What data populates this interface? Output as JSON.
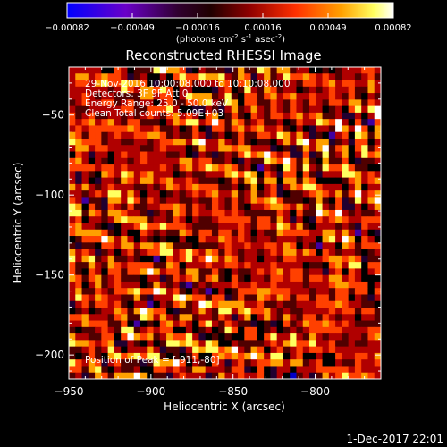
{
  "chart_data": {
    "type": "heatmap",
    "title": "Reconstructed RHESSI Image",
    "xlabel": "Heliocentric X (arcsec)",
    "ylabel": "Heliocentric Y (arcsec)",
    "xlim": [
      -950,
      -760
    ],
    "ylim": [
      -215,
      -20
    ],
    "x_ticks": [
      -950,
      -900,
      -850,
      -800
    ],
    "y_ticks": [
      -50,
      -100,
      -150,
      -200
    ],
    "grid": false,
    "colorbar": {
      "ticks": [
        "-0.00082",
        "-0.00049",
        "-0.00016",
        "0.00016",
        "0.00049",
        "0.00082"
      ],
      "range": [
        -0.00082,
        0.00082
      ],
      "units_main": "(photons cm",
      "units_exp1": "-2",
      "units_mid": " s",
      "units_exp2": "-1",
      "units_end": " asec",
      "units_exp3": "-2",
      "units_close": ")"
    },
    "annotations": [
      "29-Nov-2016 10:00:08.000 to 10:10:08.000",
      "Detectors: 3F 9F Att 0",
      "Energy Range: 25.0 - 50.0 keV",
      "Clean     Total counts: 5.09E+03"
    ],
    "peak_label": "Position of Peak = [-911,-80]",
    "pattern": {
      "description_free": true,
      "x_cells": 48,
      "y_cells": 48,
      "wave_dir_deg": 38,
      "period_arcsec": 22,
      "colormap": [
        "#0000c8",
        "#4000a0",
        "#200030",
        "#000000",
        "#500000",
        "#b00000",
        "#ff4000",
        "#ffa000",
        "#ffff60",
        "#ffffff"
      ]
    }
  },
  "footer": {
    "timestamp": "1-Dec-2017 22:01"
  }
}
